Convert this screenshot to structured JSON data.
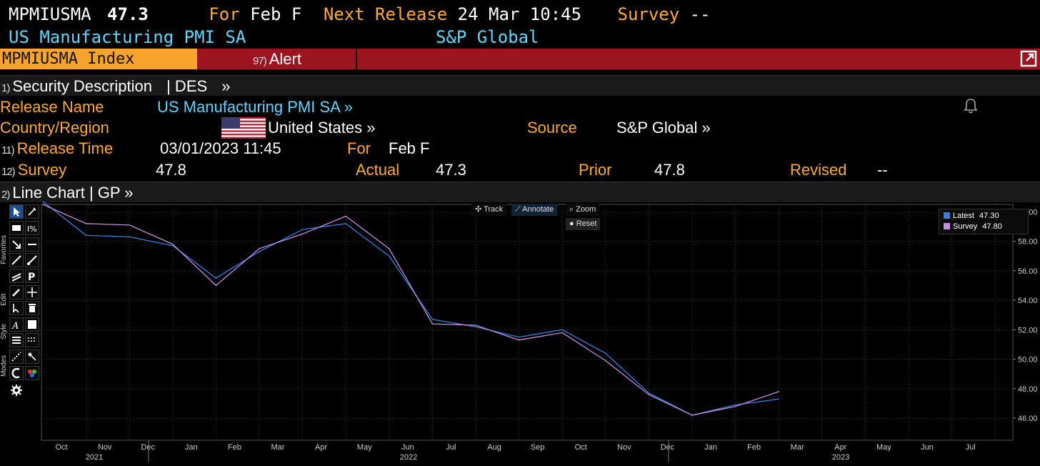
{
  "header": {
    "ticker": "MPMIUSMA",
    "value": "47.3",
    "for_label": "For",
    "for_value": "Feb F",
    "next_release_label": "Next Release",
    "next_release_value": "24 Mar 10:45",
    "survey_label": "Survey",
    "survey_value": "--",
    "title": "US Manufacturing PMI SA",
    "source": "S&P Global"
  },
  "tabs": {
    "index": "MPMIUSMA Index",
    "alert_num": "97)",
    "alert": "Alert"
  },
  "section_des": {
    "num": "1)",
    "label": "Security Description",
    "code": "| DES",
    "arrow": "»"
  },
  "details": {
    "release_name_label": "Release Name",
    "release_name": "US Manufacturing PMI SA »",
    "country_label": "Country/Region",
    "country": "United States »",
    "source_label": "Source",
    "source": "S&P Global »",
    "release_time_num": "11)",
    "release_time_label": "Release Time",
    "release_time": "03/01/2023 11:45",
    "for_label": "For",
    "for_value": "Feb F",
    "survey_num": "12)",
    "survey_label": "Survey",
    "survey_value": "47.8",
    "actual_label": "Actual",
    "actual_value": "47.3",
    "prior_label": "Prior",
    "prior_value": "47.8",
    "revised_label": "Revised",
    "revised_value": "--"
  },
  "section_chart": {
    "num": "2)",
    "label": "Line Chart | GP »"
  },
  "chart_controls": {
    "track": "Track",
    "annotate": "Annotate",
    "zoom": "Zoom",
    "reset": "Reset"
  },
  "toolbar_tabs": [
    "Favorites",
    "Edit",
    "Style",
    "Modes"
  ],
  "chart_data": {
    "type": "line",
    "x": [
      "Sep 2021",
      "Oct 2021",
      "Nov 2021",
      "Dec 2021",
      "Jan 2022",
      "Feb 2022",
      "Mar 2022",
      "Apr 2022",
      "May 2022",
      "Jun 2022",
      "Jul 2022",
      "Aug 2022",
      "Sep 2022",
      "Oct 2022",
      "Nov 2022",
      "Dec 2022",
      "Jan 2023",
      "Feb 2023"
    ],
    "x_tick_labels": [
      "Oct",
      "Nov",
      "Dec",
      "Jan",
      "Feb",
      "Mar",
      "Apr",
      "May",
      "Jun",
      "Jul",
      "Aug",
      "Sep",
      "Oct",
      "Nov",
      "Dec",
      "Jan",
      "Feb",
      "Mar",
      "Apr",
      "May",
      "Jun",
      "Jul"
    ],
    "year_labels": [
      "2021",
      "2022",
      "2023"
    ],
    "series": [
      {
        "name": "Latest",
        "color": "#3a7fe0",
        "values": [
          60.7,
          58.4,
          58.3,
          57.7,
          55.5,
          57.3,
          58.8,
          59.2,
          57.0,
          52.7,
          52.2,
          51.5,
          52.0,
          50.4,
          47.7,
          46.2,
          46.9,
          47.3
        ]
      },
      {
        "name": "Survey",
        "color": "#c58ee0",
        "values": [
          60.5,
          59.2,
          59.1,
          57.8,
          55.0,
          57.5,
          58.5,
          59.7,
          57.5,
          52.4,
          52.3,
          51.3,
          51.8,
          49.9,
          47.6,
          46.2,
          46.8,
          47.8
        ]
      }
    ],
    "legend": [
      {
        "label": "Latest",
        "value": "47.30",
        "color": "#3a7fe0"
      },
      {
        "label": "Survey",
        "value": "47.80",
        "color": "#c58ee0"
      }
    ],
    "ylim": [
      44.5,
      60.5
    ],
    "y_ticks": [
      "46.00",
      "48.00",
      "50.00",
      "52.00",
      "54.00",
      "56.00",
      "58.00",
      "60.00"
    ],
    "grid": true,
    "legend_position": "top-right"
  }
}
